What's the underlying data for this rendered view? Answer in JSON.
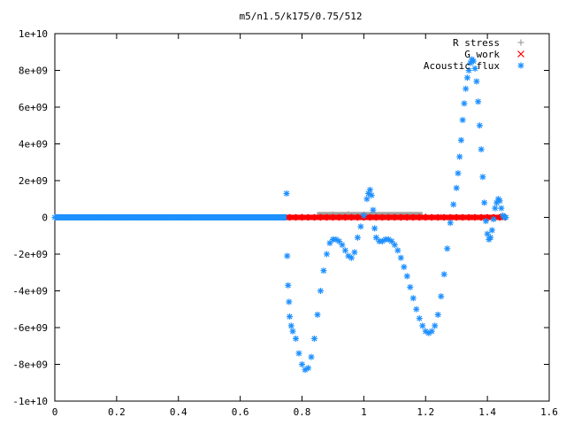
{
  "chart_data": {
    "type": "scatter",
    "title": "m5/n1.5/k175/0.75/512",
    "xlabel": "",
    "ylabel": "",
    "xlim": [
      0,
      1.6
    ],
    "ylim": [
      -10000000000,
      10000000000
    ],
    "x_ticks": [
      0,
      0.2,
      0.4,
      0.6,
      0.8,
      1,
      1.2,
      1.4,
      1.6
    ],
    "x_tick_labels": [
      "0",
      "0.2",
      "0.4",
      "0.6",
      "0.8",
      "1",
      "1.2",
      "1.4",
      "1.6"
    ],
    "y_ticks": [
      -10000000000,
      -8000000000,
      -6000000000,
      -4000000000,
      -2000000000,
      0,
      2000000000,
      4000000000,
      6000000000,
      8000000000,
      10000000000
    ],
    "y_tick_labels": [
      "-1e+10",
      "-8e+09",
      "-6e+09",
      "-4e+09",
      "-2e+09",
      "0",
      "2e+09",
      "4e+09",
      "6e+09",
      "8e+09",
      "1e+10"
    ],
    "grid": false,
    "legend_position": "top-right",
    "series": [
      {
        "name": "R stress",
        "color": "#a0a0a0",
        "marker": "plus",
        "x": [
          0.76,
          0.8,
          0.85,
          0.9,
          0.95,
          1.0,
          1.05,
          1.1,
          1.15,
          1.2,
          1.25,
          1.3,
          1.35,
          1.4,
          1.45
        ],
        "y": [
          0,
          30000000,
          110000000,
          150000000,
          170000000,
          150000000,
          110000000,
          100000000,
          100000000,
          60000000,
          20000000,
          0,
          0,
          0,
          0
        ]
      },
      {
        "name": "G work",
        "color": "#ff0000",
        "marker": "cross",
        "x": [
          0.75,
          0.77,
          0.79,
          0.81,
          0.83,
          0.85,
          0.87,
          0.89,
          0.91,
          0.93,
          0.95,
          0.97,
          0.99,
          1.01,
          1.03,
          1.05,
          1.07,
          1.09,
          1.11,
          1.13,
          1.15,
          1.17,
          1.19,
          1.21,
          1.23,
          1.25,
          1.27,
          1.29,
          1.31,
          1.33,
          1.35,
          1.37,
          1.39,
          1.41,
          1.43,
          1.45
        ],
        "y": [
          0,
          0,
          0,
          0,
          0,
          0,
          0,
          0,
          0,
          0,
          0,
          0,
          0,
          0,
          0,
          0,
          0,
          0,
          0,
          0,
          0,
          0,
          0,
          0,
          0,
          0,
          0,
          0,
          0,
          0,
          0,
          0,
          0,
          0,
          0,
          0
        ]
      },
      {
        "name": "Acoustic flux",
        "color": "#1e90ff",
        "marker": "star",
        "x": [
          0,
          0.02,
          0.04,
          0.06,
          0.08,
          0.1,
          0.12,
          0.14,
          0.16,
          0.18,
          0.2,
          0.22,
          0.24,
          0.26,
          0.28,
          0.3,
          0.32,
          0.34,
          0.36,
          0.38,
          0.4,
          0.42,
          0.44,
          0.46,
          0.48,
          0.5,
          0.52,
          0.54,
          0.56,
          0.58,
          0.6,
          0.62,
          0.64,
          0.66,
          0.68,
          0.7,
          0.72,
          0.74,
          0.75,
          0.752,
          0.755,
          0.758,
          0.76,
          0.765,
          0.77,
          0.78,
          0.79,
          0.8,
          0.81,
          0.82,
          0.83,
          0.84,
          0.85,
          0.86,
          0.87,
          0.88,
          0.89,
          0.9,
          0.91,
          0.92,
          0.93,
          0.94,
          0.95,
          0.96,
          0.97,
          0.98,
          0.99,
          1.0,
          1.01,
          1.015,
          1.02,
          1.025,
          1.03,
          1.035,
          1.04,
          1.05,
          1.06,
          1.07,
          1.08,
          1.09,
          1.1,
          1.11,
          1.12,
          1.13,
          1.14,
          1.15,
          1.16,
          1.17,
          1.18,
          1.19,
          1.2,
          1.21,
          1.22,
          1.23,
          1.24,
          1.25,
          1.26,
          1.27,
          1.28,
          1.29,
          1.3,
          1.305,
          1.31,
          1.315,
          1.32,
          1.325,
          1.33,
          1.335,
          1.34,
          1.345,
          1.35,
          1.355,
          1.36,
          1.365,
          1.37,
          1.375,
          1.38,
          1.385,
          1.39,
          1.395,
          1.4,
          1.405,
          1.41,
          1.415,
          1.42,
          1.425,
          1.43,
          1.435,
          1.44,
          1.445,
          1.45,
          1.455,
          1.46
        ],
        "y": [
          0,
          0,
          0,
          0,
          0,
          0,
          0,
          0,
          0,
          0,
          0,
          0,
          0,
          0,
          0,
          0,
          0,
          0,
          0,
          0,
          0,
          0,
          0,
          0,
          0,
          0,
          0,
          0,
          0,
          0,
          0,
          0,
          0,
          0,
          0,
          0,
          0,
          0,
          1300000000,
          -2100000000,
          -3700000000,
          -4600000000,
          -5400000000,
          -5900000000,
          -6200000000,
          -6600000000,
          -7400000000,
          -8000000000,
          -8300000000,
          -8200000000,
          -7600000000,
          -6600000000,
          -5300000000,
          -4000000000,
          -2900000000,
          -2000000000,
          -1400000000,
          -1200000000,
          -1200000000,
          -1300000000,
          -1500000000,
          -1800000000,
          -2100000000,
          -2200000000,
          -1900000000,
          -1100000000,
          -500000000,
          100000000,
          1000000000,
          1300000000,
          1500000000,
          1200000000,
          400000000,
          -600000000,
          -1100000000,
          -1300000000,
          -1300000000,
          -1200000000,
          -1200000000,
          -1300000000,
          -1500000000,
          -1800000000,
          -2200000000,
          -2700000000,
          -3200000000,
          -3800000000,
          -4400000000,
          -5000000000,
          -5500000000,
          -5900000000,
          -6200000000,
          -6300000000,
          -6200000000,
          -5900000000,
          -5300000000,
          -4300000000,
          -3100000000,
          -1700000000,
          -300000000,
          700000000,
          1600000000,
          2400000000,
          3300000000,
          4200000000,
          5300000000,
          6200000000,
          7000000000,
          7600000000,
          8000000000,
          8400000000,
          8600000000,
          8500000000,
          8100000000,
          7400000000,
          6300000000,
          5000000000,
          3700000000,
          2200000000,
          800000000,
          -200000000,
          -900000000,
          -1200000000,
          -1100000000,
          -700000000,
          -100000000,
          500000000,
          800000000,
          1000000000,
          900000000,
          500000000,
          100000000,
          0,
          0
        ]
      }
    ]
  }
}
